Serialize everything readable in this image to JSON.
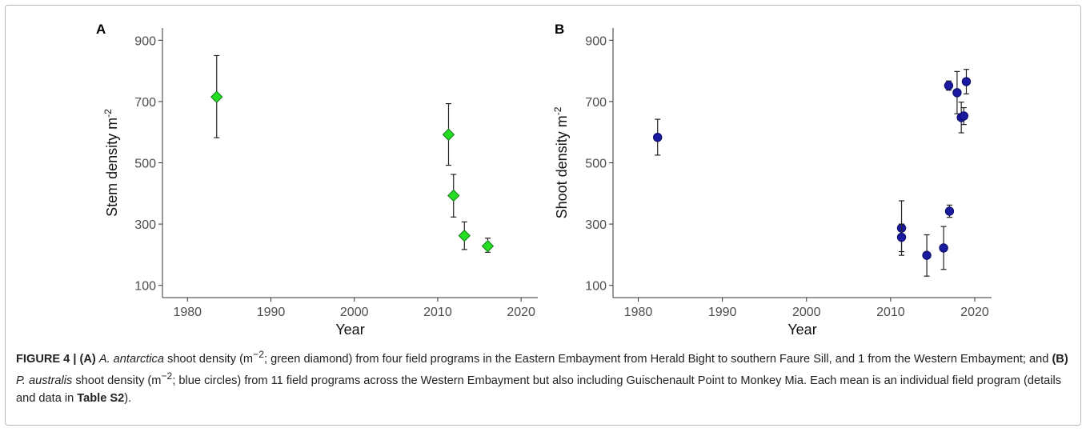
{
  "chart_data": [
    {
      "panel": "A",
      "type": "scatter",
      "xlabel": "Year",
      "ylabel": "Stem density m",
      "ylabel_sup": "-2",
      "xlim": [
        1977,
        2022
      ],
      "ylim": [
        60,
        940
      ],
      "xticks": [
        1980,
        1990,
        2000,
        2010,
        2020
      ],
      "yticks": [
        100,
        300,
        500,
        700,
        900
      ],
      "marker": "diamond",
      "color": "#22dd22",
      "grid": false,
      "points": [
        {
          "x": 1983.5,
          "y": 715,
          "low": 582,
          "high": 850
        },
        {
          "x": 2011.3,
          "y": 592,
          "low": 492,
          "high": 693
        },
        {
          "x": 2011.9,
          "y": 393,
          "low": 323,
          "high": 462
        },
        {
          "x": 2013.2,
          "y": 262,
          "low": 217,
          "high": 307
        },
        {
          "x": 2016.0,
          "y": 228,
          "low": 208,
          "high": 254
        }
      ]
    },
    {
      "panel": "B",
      "type": "scatter",
      "xlabel": "Year",
      "ylabel": "Shoot density m",
      "ylabel_sup": "-2",
      "xlim": [
        1977,
        2022
      ],
      "ylim": [
        60,
        940
      ],
      "xticks": [
        1980,
        1990,
        2000,
        2010,
        2020
      ],
      "yticks": [
        100,
        300,
        500,
        700,
        900
      ],
      "marker": "circle",
      "color": "#1a1aa0",
      "grid": false,
      "points": [
        {
          "x": 1982.3,
          "y": 583,
          "low": 525,
          "high": 642
        },
        {
          "x": 2011.3,
          "y": 287,
          "low": 198,
          "high": 376
        },
        {
          "x": 2011.3,
          "y": 257,
          "low": 210,
          "high": 300
        },
        {
          "x": 2014.3,
          "y": 198,
          "low": 130,
          "high": 265
        },
        {
          "x": 2016.3,
          "y": 222,
          "low": 152,
          "high": 292
        },
        {
          "x": 2016.9,
          "y": 752,
          "low": 737,
          "high": 767
        },
        {
          "x": 2017.0,
          "y": 342,
          "low": 322,
          "high": 362
        },
        {
          "x": 2017.9,
          "y": 729,
          "low": 660,
          "high": 798
        },
        {
          "x": 2018.4,
          "y": 648,
          "low": 598,
          "high": 698
        },
        {
          "x": 2018.7,
          "y": 653,
          "low": 625,
          "high": 680
        },
        {
          "x": 2019.0,
          "y": 765,
          "low": 725,
          "high": 805
        }
      ]
    }
  ],
  "caption": {
    "figure_label": "FIGURE 4 |",
    "a_label": "(A)",
    "a_species": "A. antarctica",
    "a_pre": " shoot density (m",
    "a_sup": "−2",
    "a_post": "; green diamond) from four field programs in the Eastern Embayment from Herald Bight to southern Faure Sill, and 1 from the Western Embayment; and ",
    "b_label": "(B)",
    "b_species": "P. australis",
    "b_pre": " shoot density (m",
    "b_sup": "−2",
    "b_post": "; blue circles) from 11 field programs across the Western Embayment but also including Guischenault Point to Monkey Mia. Each mean is an individual field program (details and data in ",
    "table_ref": "Table S2",
    "end": ")."
  }
}
